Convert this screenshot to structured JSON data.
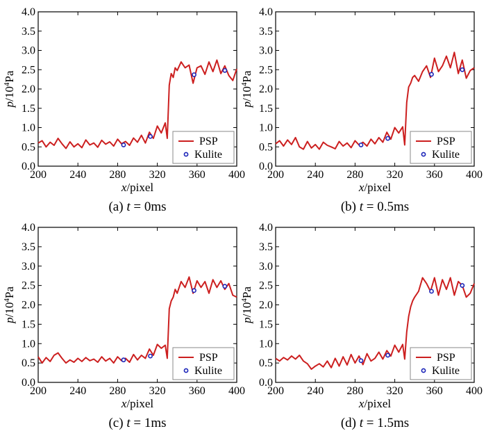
{
  "chart_data": [
    {
      "type": "line",
      "caption": "(a)  t = 0ms",
      "caption_parts": {
        "prefix": "(a)  ",
        "var": "t",
        "rest": " = 0ms"
      },
      "xlabel_var": "x",
      "xlabel_unit": "/pixel",
      "ylabel_var": "p",
      "ylabel_unit_pre": "/10",
      "ylabel_unit_sup": "4",
      "ylabel_unit_post": "Pa",
      "xlim": [
        200,
        400
      ],
      "ylim": [
        0.0,
        4.0
      ],
      "xticks": [
        "200",
        "240",
        "280",
        "320",
        "360",
        "400"
      ],
      "yticks": [
        "0.0",
        "0.5",
        "1.0",
        "1.5",
        "2.0",
        "2.5",
        "3.0",
        "3.5",
        "4.0"
      ],
      "legend_position": "lower-right",
      "series": [
        {
          "name": "PSP",
          "style": "line",
          "color": "#cc1f1f",
          "x": [
            200,
            204,
            208,
            212,
            216,
            220,
            224,
            228,
            232,
            236,
            240,
            244,
            248,
            252,
            256,
            260,
            264,
            268,
            272,
            276,
            280,
            284,
            288,
            292,
            296,
            300,
            304,
            308,
            312,
            316,
            320,
            324,
            328,
            330,
            332,
            334,
            336,
            338,
            340,
            344,
            348,
            352,
            356,
            360,
            364,
            368,
            372,
            376,
            380,
            384,
            388,
            392,
            396,
            400
          ],
          "y": [
            0.6,
            0.66,
            0.5,
            0.62,
            0.54,
            0.72,
            0.58,
            0.46,
            0.63,
            0.5,
            0.58,
            0.48,
            0.68,
            0.55,
            0.6,
            0.49,
            0.67,
            0.57,
            0.63,
            0.52,
            0.7,
            0.58,
            0.64,
            0.54,
            0.73,
            0.62,
            0.8,
            0.6,
            0.88,
            0.72,
            1.04,
            0.86,
            1.12,
            0.72,
            2.1,
            2.4,
            2.3,
            2.55,
            2.48,
            2.7,
            2.55,
            2.62,
            2.15,
            2.55,
            2.6,
            2.38,
            2.7,
            2.45,
            2.75,
            2.4,
            2.6,
            2.35,
            2.22,
            2.52
          ]
        },
        {
          "name": "Kulite",
          "style": "marker",
          "color": "#1a23b8",
          "x": [
            286,
            313,
            357,
            388
          ],
          "y": [
            0.55,
            0.77,
            2.37,
            2.48
          ]
        }
      ]
    },
    {
      "type": "line",
      "caption": "(b)  t = 0.5ms",
      "caption_parts": {
        "prefix": "(b)  ",
        "var": "t",
        "rest": " = 0.5ms"
      },
      "xlabel_var": "x",
      "xlabel_unit": "/pixel",
      "ylabel_var": "p",
      "ylabel_unit_pre": "/10",
      "ylabel_unit_sup": "4",
      "ylabel_unit_post": "Pa",
      "xlim": [
        200,
        400
      ],
      "ylim": [
        0.0,
        4.0
      ],
      "xticks": [
        "200",
        "240",
        "280",
        "320",
        "360",
        "400"
      ],
      "yticks": [
        "0.0",
        "0.5",
        "1.0",
        "1.5",
        "2.0",
        "2.5",
        "3.0",
        "3.5",
        "4.0"
      ],
      "legend_position": "lower-right",
      "series": [
        {
          "name": "PSP",
          "style": "line",
          "color": "#cc1f1f",
          "x": [
            200,
            204,
            208,
            212,
            216,
            220,
            224,
            228,
            232,
            236,
            240,
            244,
            248,
            252,
            256,
            260,
            264,
            268,
            272,
            276,
            280,
            284,
            288,
            292,
            296,
            300,
            304,
            308,
            312,
            316,
            320,
            324,
            328,
            330,
            332,
            334,
            336,
            338,
            340,
            344,
            348,
            352,
            356,
            360,
            364,
            368,
            372,
            376,
            380,
            384,
            388,
            392,
            396,
            400
          ],
          "y": [
            0.58,
            0.66,
            0.52,
            0.68,
            0.56,
            0.74,
            0.5,
            0.44,
            0.64,
            0.47,
            0.56,
            0.44,
            0.62,
            0.54,
            0.5,
            0.45,
            0.64,
            0.52,
            0.6,
            0.48,
            0.66,
            0.55,
            0.62,
            0.52,
            0.7,
            0.58,
            0.74,
            0.62,
            0.88,
            0.7,
            1.0,
            0.86,
            1.02,
            0.55,
            1.65,
            2.05,
            2.15,
            2.3,
            2.35,
            2.2,
            2.45,
            2.6,
            2.3,
            2.8,
            2.45,
            2.6,
            2.85,
            2.55,
            2.95,
            2.4,
            2.75,
            2.28,
            2.48,
            2.55
          ]
        },
        {
          "name": "Kulite",
          "style": "marker",
          "color": "#1a23b8",
          "x": [
            286,
            313,
            357,
            388
          ],
          "y": [
            0.55,
            0.72,
            2.38,
            2.5
          ]
        }
      ]
    },
    {
      "type": "line",
      "caption": "(c)  t = 1ms",
      "caption_parts": {
        "prefix": "(c)  ",
        "var": "t",
        "rest": " = 1ms"
      },
      "xlabel_var": "x",
      "xlabel_unit": "/pixel",
      "ylabel_var": "p",
      "ylabel_unit_pre": "/10",
      "ylabel_unit_sup": "4",
      "ylabel_unit_post": "Pa",
      "xlim": [
        200,
        400
      ],
      "ylim": [
        0.0,
        4.0
      ],
      "xticks": [
        "200",
        "240",
        "280",
        "320",
        "360",
        "400"
      ],
      "yticks": [
        "0.0",
        "0.5",
        "1.0",
        "1.5",
        "2.0",
        "2.5",
        "3.0",
        "3.5",
        "4.0"
      ],
      "legend_position": "lower-right",
      "series": [
        {
          "name": "PSP",
          "style": "line",
          "color": "#cc1f1f",
          "x": [
            200,
            204,
            208,
            212,
            216,
            220,
            224,
            228,
            232,
            236,
            240,
            244,
            248,
            252,
            256,
            260,
            264,
            268,
            272,
            276,
            280,
            284,
            288,
            292,
            296,
            300,
            304,
            308,
            312,
            316,
            320,
            324,
            328,
            330,
            332,
            334,
            336,
            338,
            340,
            344,
            348,
            352,
            356,
            360,
            364,
            368,
            372,
            376,
            380,
            384,
            388,
            392,
            396,
            400
          ],
          "y": [
            0.66,
            0.5,
            0.64,
            0.54,
            0.7,
            0.76,
            0.62,
            0.5,
            0.58,
            0.52,
            0.62,
            0.54,
            0.64,
            0.56,
            0.6,
            0.52,
            0.66,
            0.55,
            0.62,
            0.5,
            0.66,
            0.56,
            0.62,
            0.52,
            0.72,
            0.58,
            0.7,
            0.62,
            0.86,
            0.7,
            0.98,
            0.88,
            0.96,
            0.62,
            1.9,
            2.1,
            2.2,
            2.4,
            2.3,
            2.6,
            2.45,
            2.72,
            2.3,
            2.62,
            2.45,
            2.6,
            2.3,
            2.65,
            2.45,
            2.62,
            2.4,
            2.55,
            2.25,
            2.2
          ]
        },
        {
          "name": "Kulite",
          "style": "marker",
          "color": "#1a23b8",
          "x": [
            286,
            313,
            357,
            388
          ],
          "y": [
            0.58,
            0.68,
            2.37,
            2.48
          ]
        }
      ]
    },
    {
      "type": "line",
      "caption": "(d)  t = 1.5ms",
      "caption_parts": {
        "prefix": "(d)  ",
        "var": "t",
        "rest": " = 1.5ms"
      },
      "xlabel_var": "x",
      "xlabel_unit": "/pixel",
      "ylabel_var": "p",
      "ylabel_unit_pre": "/10",
      "ylabel_unit_sup": "4",
      "ylabel_unit_post": "Pa",
      "xlim": [
        200,
        400
      ],
      "ylim": [
        0.0,
        4.0
      ],
      "xticks": [
        "200",
        "240",
        "280",
        "320",
        "360",
        "400"
      ],
      "yticks": [
        "0.0",
        "0.5",
        "1.0",
        "1.5",
        "2.0",
        "2.5",
        "3.0",
        "3.5",
        "4.0"
      ],
      "legend_position": "lower-right",
      "series": [
        {
          "name": "PSP",
          "style": "line",
          "color": "#cc1f1f",
          "x": [
            200,
            204,
            208,
            212,
            216,
            220,
            224,
            228,
            232,
            236,
            240,
            244,
            248,
            252,
            256,
            260,
            264,
            268,
            272,
            276,
            280,
            284,
            288,
            292,
            296,
            300,
            304,
            308,
            312,
            316,
            320,
            324,
            328,
            330,
            332,
            334,
            336,
            338,
            340,
            344,
            348,
            352,
            356,
            360,
            364,
            368,
            372,
            376,
            380,
            384,
            388,
            392,
            396,
            400
          ],
          "y": [
            0.62,
            0.55,
            0.64,
            0.58,
            0.68,
            0.6,
            0.7,
            0.55,
            0.48,
            0.34,
            0.42,
            0.48,
            0.4,
            0.55,
            0.38,
            0.62,
            0.42,
            0.66,
            0.45,
            0.72,
            0.5,
            0.68,
            0.46,
            0.74,
            0.55,
            0.62,
            0.78,
            0.6,
            0.82,
            0.68,
            0.96,
            0.78,
            0.98,
            0.6,
            1.3,
            1.7,
            1.95,
            2.1,
            2.2,
            2.35,
            2.7,
            2.55,
            2.35,
            2.7,
            2.25,
            2.65,
            2.4,
            2.7,
            2.25,
            2.6,
            2.5,
            2.2,
            2.3,
            2.55
          ]
        },
        {
          "name": "Kulite",
          "style": "marker",
          "color": "#1a23b8",
          "x": [
            286,
            313,
            357,
            388
          ],
          "y": [
            0.56,
            0.7,
            2.35,
            2.5
          ]
        }
      ]
    }
  ]
}
